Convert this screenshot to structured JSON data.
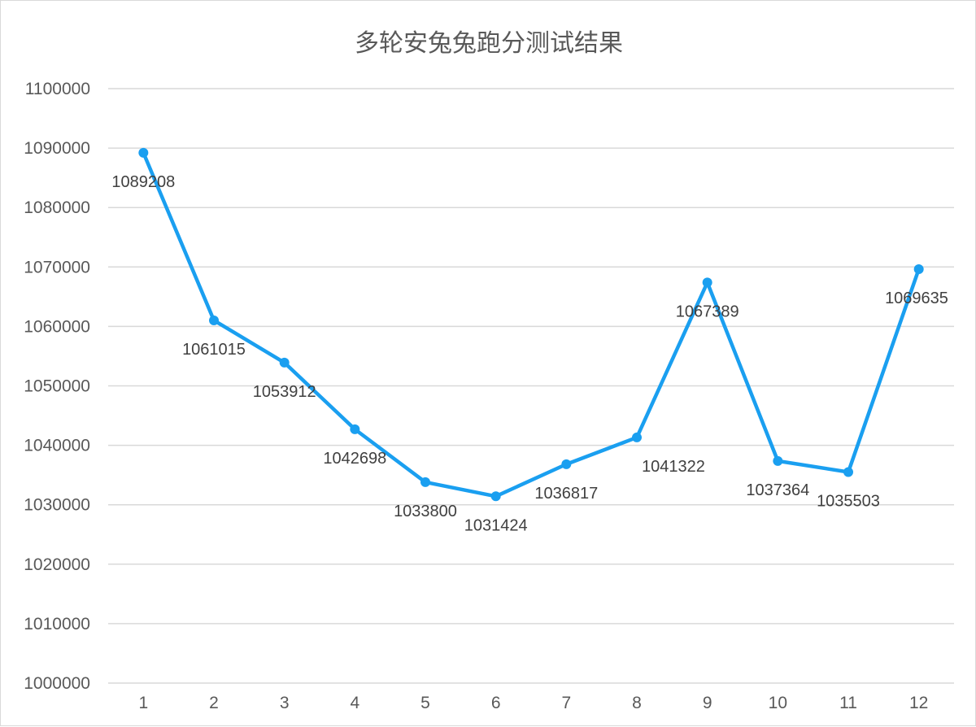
{
  "chart_data": {
    "type": "line",
    "title": "多轮安兔兔跑分测试结果",
    "categories": [
      "1",
      "2",
      "3",
      "4",
      "5",
      "6",
      "7",
      "8",
      "9",
      "10",
      "11",
      "12"
    ],
    "series": [
      {
        "values": [
          1089208,
          1061015,
          1053912,
          1042698,
          1033800,
          1031424,
          1036817,
          1041322,
          1067389,
          1037364,
          1035503,
          1069635
        ],
        "color": "#1a9ff0",
        "marker": "circle"
      }
    ],
    "data_labels": [
      "1089208",
      "1061015",
      "1053912",
      "1042698",
      "1033800",
      "1031424",
      "1036817",
      "1041322",
      "1067389",
      "1037364",
      "1035503",
      "1069635"
    ],
    "ylim": [
      1000000,
      1100000
    ],
    "yticks": [
      "1000000",
      "1010000",
      "1020000",
      "1030000",
      "1040000",
      "1050000",
      "1060000",
      "1070000",
      "1080000",
      "1090000",
      "1100000"
    ],
    "grid": true,
    "legend": "none",
    "colors": {
      "line": "#1a9ff0",
      "grid": "#d9d9d9",
      "text": "#595959",
      "label": "#404040"
    }
  }
}
